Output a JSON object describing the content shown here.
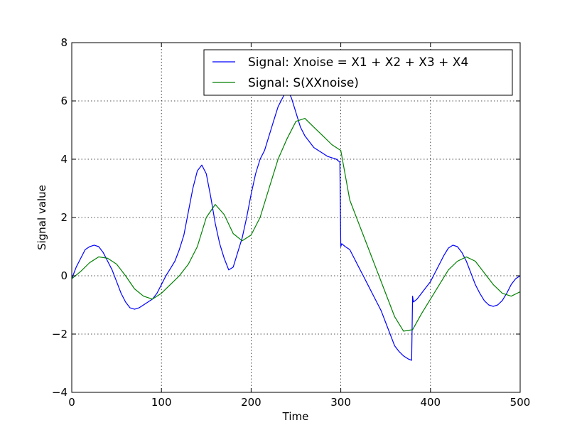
{
  "chart_data": {
    "type": "line",
    "title": "",
    "xlabel": "Time",
    "ylabel": "Signal value",
    "xlim": [
      0,
      500
    ],
    "ylim": [
      -4,
      8
    ],
    "xticks": [
      0,
      100,
      200,
      300,
      400,
      500
    ],
    "yticks": [
      -4,
      -2,
      0,
      2,
      4,
      6,
      8
    ],
    "xtick_labels": [
      "0",
      "100",
      "200",
      "300",
      "400",
      "500"
    ],
    "ytick_labels": [
      "−4",
      "−2",
      "0",
      "2",
      "4",
      "6",
      "8"
    ],
    "grid": true,
    "legend_position": "top-right",
    "series": [
      {
        "name": "Signal: Xnoise = X1 + X2 + X3 + X4",
        "color": "#0000ff",
        "x": [
          0,
          5,
          10,
          15,
          20,
          25,
          30,
          35,
          40,
          45,
          50,
          55,
          60,
          65,
          70,
          75,
          80,
          85,
          90,
          95,
          100,
          105,
          110,
          115,
          120,
          125,
          130,
          135,
          140,
          145,
          150,
          155,
          160,
          165,
          170,
          175,
          180,
          185,
          190,
          195,
          200,
          205,
          210,
          215,
          220,
          225,
          230,
          235,
          240,
          245,
          250,
          255,
          260,
          265,
          270,
          275,
          280,
          285,
          290,
          295,
          299,
          300,
          301,
          305,
          310,
          315,
          320,
          325,
          330,
          335,
          340,
          345,
          350,
          355,
          360,
          365,
          370,
          375,
          379,
          380,
          381,
          385,
          390,
          395,
          400,
          405,
          410,
          415,
          420,
          425,
          430,
          435,
          440,
          445,
          450,
          455,
          460,
          465,
          470,
          475,
          480,
          485,
          490,
          495,
          500
        ],
        "y": [
          -0.1,
          0.3,
          0.6,
          0.9,
          1.0,
          1.05,
          1.0,
          0.8,
          0.5,
          0.2,
          -0.2,
          -0.6,
          -0.9,
          -1.1,
          -1.15,
          -1.1,
          -1.0,
          -0.9,
          -0.8,
          -0.6,
          -0.3,
          0.0,
          0.25,
          0.5,
          0.9,
          1.4,
          2.2,
          3.0,
          3.6,
          3.8,
          3.5,
          2.7,
          1.8,
          1.1,
          0.6,
          0.2,
          0.3,
          0.8,
          1.3,
          2.0,
          2.8,
          3.5,
          4.0,
          4.3,
          4.8,
          5.3,
          5.8,
          6.1,
          6.4,
          6.1,
          5.6,
          5.1,
          4.8,
          4.6,
          4.4,
          4.3,
          4.2,
          4.1,
          4.05,
          4.0,
          3.9,
          1.0,
          1.1,
          1.0,
          0.9,
          0.6,
          0.3,
          0.0,
          -0.3,
          -0.6,
          -0.9,
          -1.2,
          -1.6,
          -2.0,
          -2.4,
          -2.6,
          -2.75,
          -2.85,
          -2.9,
          -0.7,
          -0.9,
          -0.8,
          -0.6,
          -0.4,
          -0.2,
          0.1,
          0.4,
          0.7,
          0.95,
          1.05,
          1.0,
          0.8,
          0.5,
          0.1,
          -0.3,
          -0.6,
          -0.85,
          -1.0,
          -1.05,
          -1.0,
          -0.85,
          -0.6,
          -0.3,
          -0.1,
          0.0
        ]
      },
      {
        "name": "Signal: S(XXnoise)",
        "color": "#008000",
        "x": [
          0,
          10,
          20,
          30,
          40,
          50,
          60,
          70,
          80,
          90,
          100,
          110,
          120,
          130,
          140,
          150,
          160,
          170,
          180,
          190,
          200,
          210,
          220,
          230,
          240,
          250,
          260,
          270,
          280,
          290,
          300,
          310,
          320,
          330,
          340,
          350,
          360,
          370,
          380,
          390,
          400,
          410,
          420,
          430,
          440,
          450,
          460,
          470,
          480,
          490,
          500
        ],
        "y": [
          -0.1,
          0.15,
          0.45,
          0.65,
          0.6,
          0.4,
          0.0,
          -0.45,
          -0.7,
          -0.8,
          -0.6,
          -0.3,
          0.0,
          0.4,
          1.0,
          2.0,
          2.45,
          2.1,
          1.45,
          1.2,
          1.4,
          2.0,
          3.0,
          4.0,
          4.7,
          5.3,
          5.4,
          5.1,
          4.8,
          4.5,
          4.3,
          2.6,
          1.8,
          1.0,
          0.2,
          -0.6,
          -1.4,
          -1.9,
          -1.85,
          -1.3,
          -0.8,
          -0.3,
          0.2,
          0.5,
          0.65,
          0.5,
          0.1,
          -0.3,
          -0.6,
          -0.7,
          -0.55
        ]
      }
    ]
  }
}
